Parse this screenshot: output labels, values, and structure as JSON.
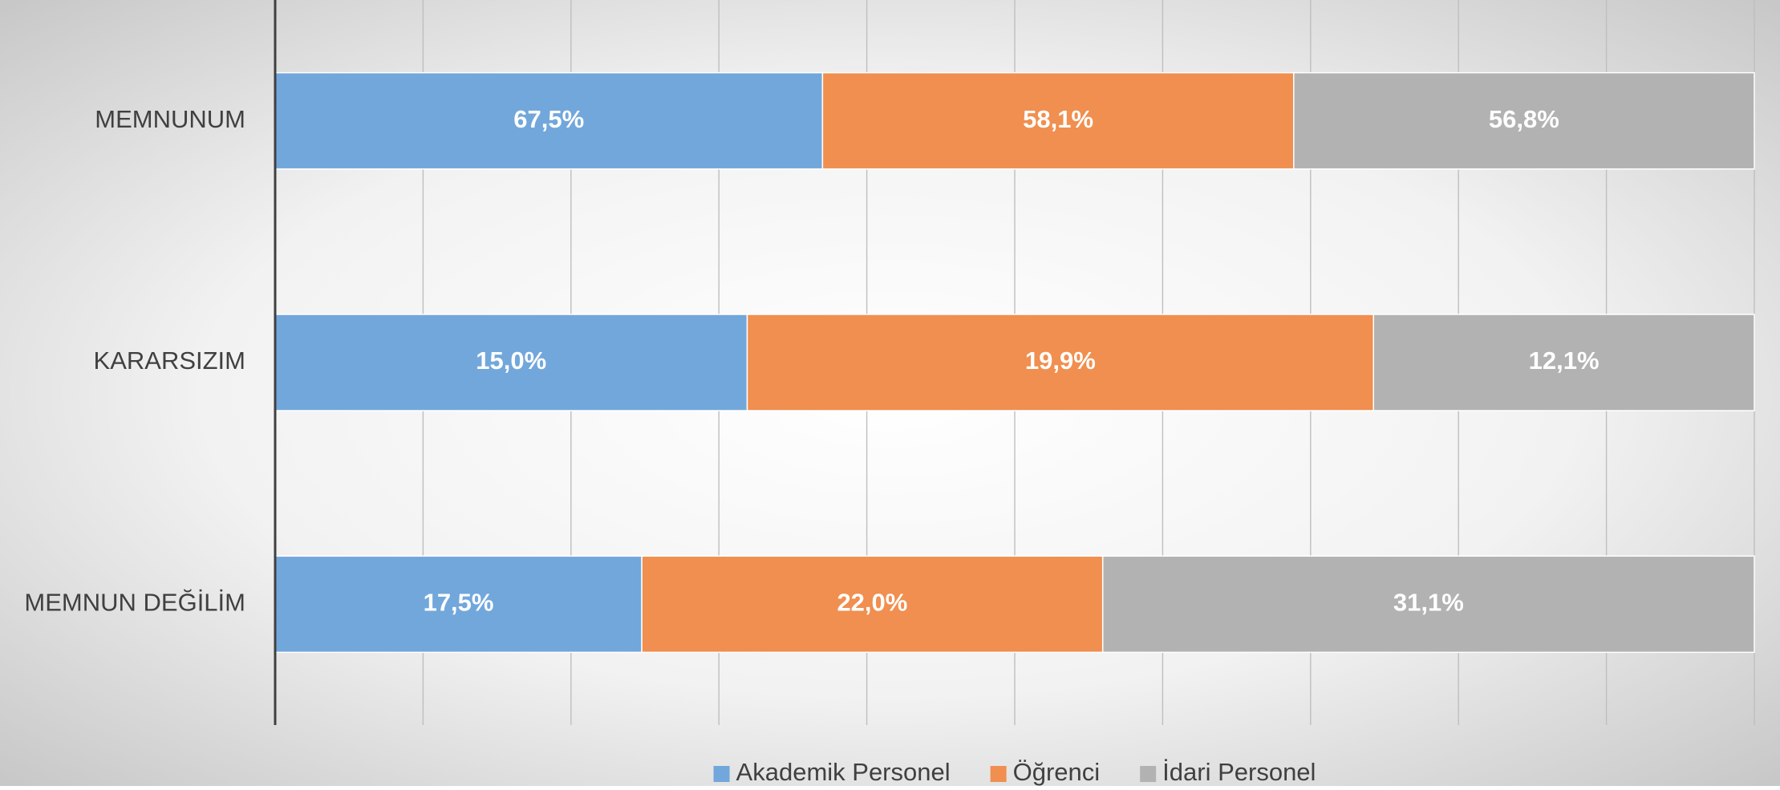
{
  "chart_data": {
    "type": "stacked_bar_100",
    "categories": [
      "MEMNUNUM",
      "KARARSIZIM",
      "MEMNUN DEĞİLİM"
    ],
    "series": [
      {
        "name": "Akademik Personel",
        "color": "#72a7db",
        "values": [
          67.5,
          15.0,
          17.5
        ],
        "value_labels": [
          "67,5%",
          "15,0%",
          "17,5%"
        ]
      },
      {
        "name": "Öğrenci",
        "color": "#f08f4f",
        "values": [
          58.1,
          19.9,
          22.0
        ],
        "value_labels": [
          "58,1%",
          "19,9%",
          "22,0%"
        ]
      },
      {
        "name": "İdari Personel",
        "color": "#b2b2b2",
        "values": [
          56.8,
          12.1,
          31.1
        ],
        "value_labels": [
          "56,8%",
          "12,1%",
          "31,1%"
        ]
      }
    ],
    "xlim": [
      0,
      100
    ],
    "xticks": [
      0,
      10,
      20,
      30,
      40,
      50,
      60,
      70,
      80,
      90,
      100
    ],
    "grid": true,
    "legend": "bottom"
  }
}
